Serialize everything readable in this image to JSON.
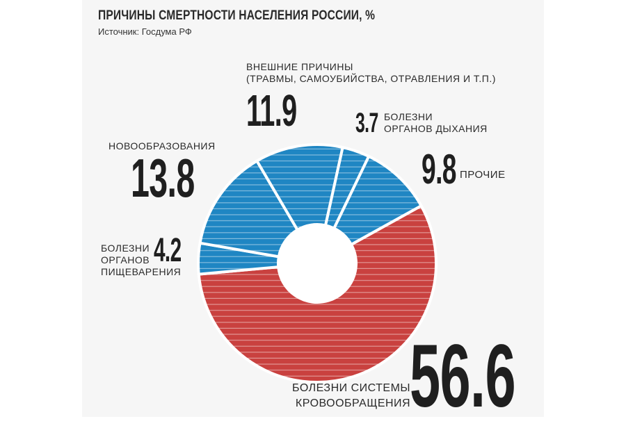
{
  "chart_data": {
    "type": "pie",
    "title": "ПРИЧИНЫ СМЕРТНОСТИ НАСЕЛЕНИЯ РОССИИ, %",
    "subtitle": "Источник: Госдума РФ",
    "slices": [
      {
        "value": 56.6,
        "value_label": "56.6",
        "label_lines": [
          "БОЛЕЗНИ СИСТЕМЫ",
          "КРОВООБРАЩЕНИЯ"
        ],
        "color": "#c9413f"
      },
      {
        "value": 4.2,
        "value_label": "4.2",
        "label_lines": [
          "БОЛЕЗНИ",
          "ОРГАНОВ",
          "ПИЩЕВАРЕНИЯ"
        ],
        "color": "#1f86c3"
      },
      {
        "value": 13.8,
        "value_label": "13.8",
        "label_lines": [
          "НОВООБРАЗОВАНИЯ"
        ],
        "color": "#1f86c3"
      },
      {
        "value": 11.9,
        "value_label": "11.9",
        "label_lines": [
          "ВНЕШНИЕ ПРИЧИНЫ",
          "(ТРАВМЫ, САМОУБИЙСТВА, ОТРАВЛЕНИЯ И Т.П.)"
        ],
        "color": "#1f86c3"
      },
      {
        "value": 3.7,
        "value_label": "3.7",
        "label_lines": [
          "БОЛЕЗНИ",
          "ОРГАНОВ ДЫХАНИЯ"
        ],
        "color": "#1f86c3"
      },
      {
        "value": 9.8,
        "value_label": "9.8",
        "label_lines": [
          "ПРОЧИЕ"
        ],
        "color": "#1f86c3"
      }
    ]
  }
}
